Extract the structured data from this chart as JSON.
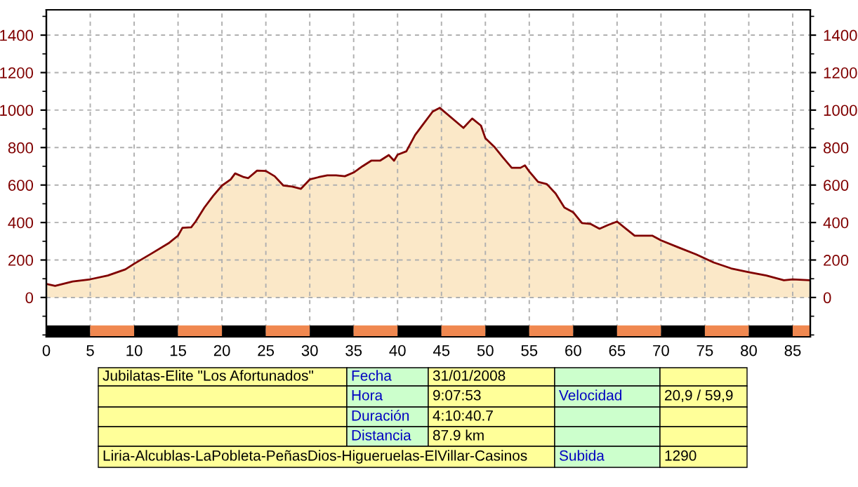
{
  "chart_data": {
    "type": "area",
    "x": [
      0,
      1,
      3,
      5,
      7,
      9,
      10,
      12,
      14,
      15,
      15.5,
      16.5,
      17,
      18,
      19,
      20,
      21,
      21.5,
      22.5,
      23,
      24,
      25,
      26,
      27,
      28,
      29,
      30,
      31,
      32,
      33,
      34,
      35,
      36,
      37,
      38,
      39,
      39.6,
      40,
      41,
      42,
      43,
      44,
      44.8,
      47.5,
      48.5,
      49.5,
      50,
      51,
      52,
      53,
      54,
      54.5,
      55,
      56,
      57,
      58,
      59,
      60,
      61,
      62,
      63,
      64,
      65,
      66,
      67,
      69,
      70,
      72,
      74,
      76,
      78,
      80,
      82,
      84,
      85,
      86.9
    ],
    "series": [
      {
        "color": "#fbe8c8",
        "values": [
          72,
          62,
          85,
          97,
          117,
          150,
          180,
          235,
          292,
          330,
          372,
          375,
          405,
          480,
          542,
          597,
          630,
          662,
          642,
          637,
          677,
          675,
          647,
          597,
          592,
          580,
          630,
          642,
          652,
          652,
          647,
          667,
          700,
          730,
          730,
          760,
          730,
          762,
          780,
          867,
          930,
          992,
          1012,
          905,
          955,
          917,
          850,
          805,
          747,
          692,
          692,
          705,
          672,
          617,
          605,
          555,
          480,
          455,
          397,
          392,
          367,
          387,
          405,
          367,
          330,
          330,
          305,
          267,
          230,
          187,
          155,
          135,
          117,
          92,
          97,
          92
        ]
      }
    ],
    "xlim": [
      0,
      87
    ],
    "xticks": [
      0,
      5,
      10,
      15,
      20,
      25,
      30,
      35,
      40,
      45,
      50,
      55,
      60,
      65,
      70,
      75,
      80,
      85
    ],
    "ylim": [
      -210,
      1535
    ],
    "yticks": [
      0,
      200,
      400,
      600,
      800,
      1000,
      1200,
      1400
    ],
    "y2lim": [
      -210,
      1535
    ],
    "y2ticks": [
      0,
      200,
      400,
      600,
      800,
      1000,
      1200,
      1400
    ],
    "grid": true,
    "line_style": "solid",
    "annotations": [
      "Jubilatas-Elite \"Los Afortunados\"",
      "Fecha",
      "31/01/2008",
      "Hora",
      "9:07:53",
      "Velocidad",
      "20,9 / 59,9",
      "Duración",
      "4:10:40.7",
      "Distancia",
      "87.9 km",
      "Liria-Alcublas-LaPobleta-PeñasDios-Higueruelas-ElVillar-Casinos",
      "Subida",
      "1290"
    ]
  }
}
